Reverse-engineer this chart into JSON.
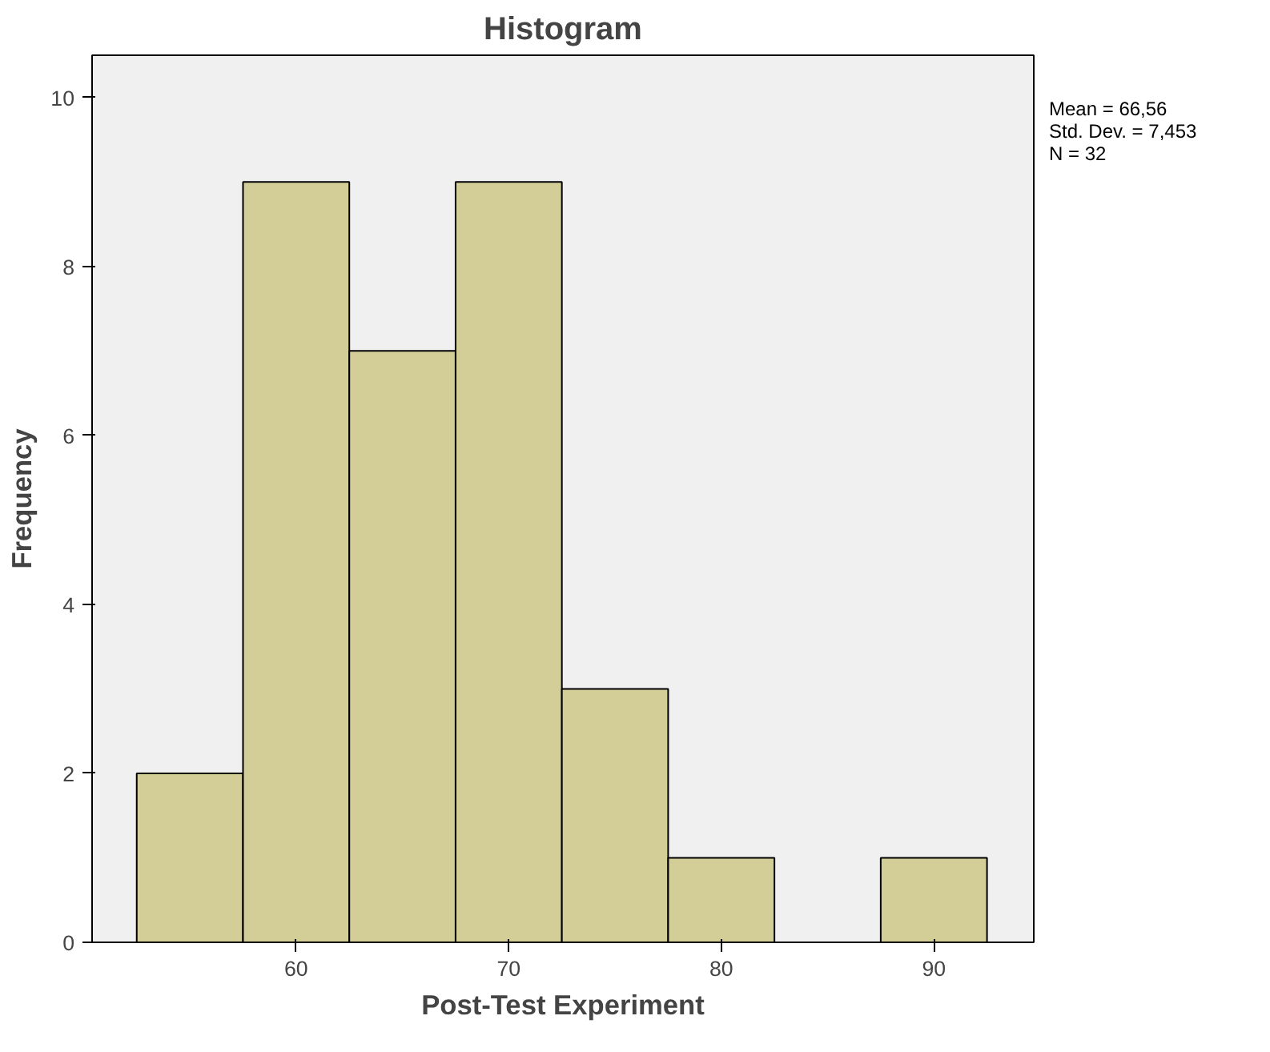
{
  "chart_data": {
    "type": "histogram",
    "title": "Histogram",
    "xlabel": "Post-Test Experiment",
    "ylabel": "Frequency",
    "bins": [
      52.5,
      57.5,
      62.5,
      67.5,
      72.5,
      77.5,
      82.5,
      87.5,
      92.5
    ],
    "values": [
      2,
      9,
      7,
      9,
      3,
      1,
      0,
      1
    ],
    "color": "#d3ce97",
    "xlim": [
      50.4,
      94.7
    ],
    "xticks": [
      60,
      70,
      80,
      90
    ],
    "ylim": [
      0,
      10.5
    ],
    "yticks": [
      0,
      2,
      4,
      6,
      8,
      10
    ],
    "grid": false,
    "annotations": [
      "Mean = 66,56",
      "Std. Dev. = 7,453",
      "N = 32"
    ]
  }
}
